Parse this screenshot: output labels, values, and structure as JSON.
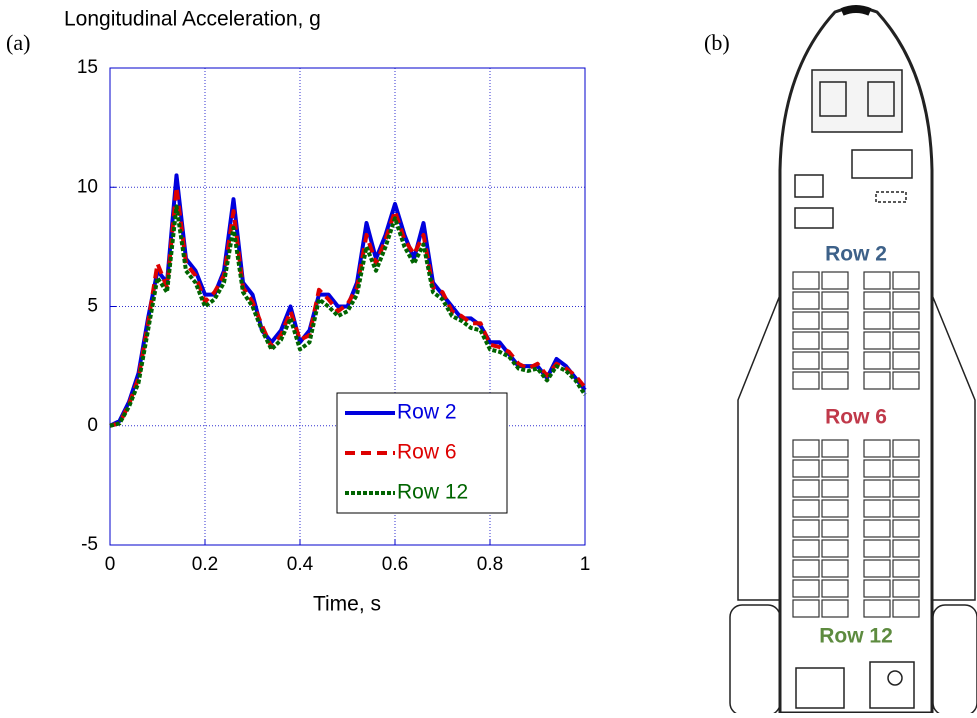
{
  "panel_labels": [
    "(a)",
    "(b)"
  ],
  "chart_data": {
    "type": "line",
    "title": "Longitudinal Acceleration, g",
    "x_label": "Time, s",
    "xlim": [
      0,
      1
    ],
    "ylim": [
      -5,
      15
    ],
    "xticks": [
      0,
      0.2,
      0.4,
      0.6,
      0.8,
      1
    ],
    "yticks": [
      -5,
      0,
      5,
      10,
      15
    ],
    "grid": true,
    "legend": "lower right",
    "x": [
      0,
      0.02,
      0.04,
      0.06,
      0.08,
      0.1,
      0.12,
      0.14,
      0.16,
      0.18,
      0.2,
      0.22,
      0.24,
      0.26,
      0.28,
      0.3,
      0.32,
      0.34,
      0.36,
      0.38,
      0.4,
      0.42,
      0.44,
      0.46,
      0.48,
      0.5,
      0.52,
      0.54,
      0.56,
      0.58,
      0.6,
      0.62,
      0.64,
      0.66,
      0.68,
      0.7,
      0.72,
      0.74,
      0.76,
      0.78,
      0.8,
      0.82,
      0.84,
      0.86,
      0.88,
      0.9,
      0.92,
      0.94,
      0.96,
      0.98,
      1
    ],
    "series": [
      {
        "name": "Row 2",
        "color": "#0000dd",
        "style": "solid",
        "values": [
          0,
          0.2,
          1.0,
          2.2,
          4.5,
          6.5,
          6.0,
          10.5,
          7.0,
          6.5,
          5.5,
          5.5,
          6.5,
          9.5,
          6.0,
          5.5,
          4.0,
          3.5,
          4.0,
          5.0,
          3.5,
          4.0,
          5.5,
          5.5,
          5.0,
          5.0,
          6.0,
          8.5,
          7.0,
          8.0,
          9.3,
          8.0,
          7.0,
          8.5,
          6.0,
          5.5,
          5.0,
          4.5,
          4.5,
          4.2,
          3.5,
          3.5,
          3.0,
          2.5,
          2.5,
          2.5,
          2.0,
          2.8,
          2.5,
          2.0,
          1.5
        ]
      },
      {
        "name": "Row 6",
        "color": "#dd0000",
        "style": "dashed",
        "values": [
          0,
          0.1,
          0.9,
          2.0,
          4.3,
          6.8,
          5.8,
          10.0,
          6.8,
          6.3,
          5.2,
          5.6,
          6.3,
          9.0,
          5.8,
          5.2,
          4.2,
          3.3,
          3.8,
          4.8,
          3.6,
          3.8,
          5.7,
          5.3,
          4.8,
          5.1,
          5.8,
          8.0,
          6.8,
          7.8,
          9.0,
          7.8,
          7.2,
          8.0,
          5.8,
          5.6,
          4.8,
          4.6,
          4.3,
          4.3,
          3.4,
          3.3,
          3.1,
          2.6,
          2.4,
          2.6,
          2.1,
          2.6,
          2.4,
          2.1,
          1.6
        ]
      },
      {
        "name": "Row 12",
        "color": "#006400",
        "style": "dotted",
        "values": [
          0,
          0.1,
          0.8,
          1.8,
          4.0,
          6.2,
          5.6,
          9.2,
          6.5,
          6.0,
          5.0,
          5.3,
          6.0,
          8.3,
          5.6,
          5.0,
          4.0,
          3.2,
          3.6,
          4.5,
          3.2,
          3.5,
          5.3,
          5.0,
          4.6,
          4.8,
          5.5,
          7.5,
          6.5,
          7.5,
          8.7,
          7.5,
          6.8,
          7.6,
          5.6,
          5.3,
          4.6,
          4.4,
          4.1,
          4.0,
          3.2,
          3.1,
          2.9,
          2.4,
          2.3,
          2.4,
          1.9,
          2.5,
          2.3,
          1.9,
          1.3
        ]
      }
    ]
  },
  "diagram": {
    "row_labels": [
      {
        "text": "Row 2",
        "color": "#3d6189"
      },
      {
        "text": "Row 6",
        "color": "#c0394a"
      },
      {
        "text": "Row 12",
        "color": "#5d8b3f"
      }
    ]
  }
}
